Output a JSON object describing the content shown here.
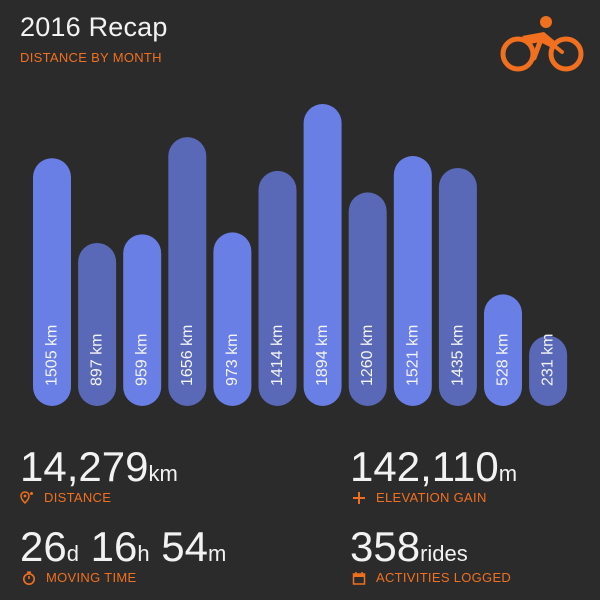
{
  "header": {
    "title": "2016 Recap",
    "subtitle": "DISTANCE BY MONTH",
    "logo_icon": "cyclist-icon"
  },
  "colors": {
    "background": "#2b2b2b",
    "accent": "#f07020",
    "bar_light": "#6a7fe6",
    "bar_dark": "#5a68b8"
  },
  "chart_data": {
    "type": "bar",
    "title": "2016 Recap",
    "subtitle": "DISTANCE BY MONTH",
    "unit": "km",
    "values": [
      1505,
      897,
      959,
      1656,
      973,
      1414,
      1894,
      1260,
      1521,
      1435,
      528,
      231
    ],
    "labels": [
      "1505 km",
      "897 km",
      "959 km",
      "1656 km",
      "973 km",
      "1414 km",
      "1894 km",
      "1260 km",
      "1521 km",
      "1435 km",
      "528 km",
      "231 km"
    ],
    "grid": false,
    "legend": "none"
  },
  "stats": {
    "distance": {
      "value": "14,279",
      "unit": "km",
      "label": "DISTANCE",
      "icon": "map-pin-icon"
    },
    "elevation": {
      "value": "142,110",
      "unit": "m",
      "label": "ELEVATION GAIN",
      "icon": "plus-icon"
    },
    "moving_time": {
      "days": "26",
      "days_unit": "d",
      "hours": "16",
      "hours_unit": "h",
      "minutes": "54",
      "minutes_unit": "m",
      "label": "MOVING TIME",
      "icon": "stopwatch-icon"
    },
    "activities": {
      "value": "358",
      "unit": "rides",
      "label": "ACTIVITIES LOGGED",
      "icon": "calendar-icon"
    }
  }
}
